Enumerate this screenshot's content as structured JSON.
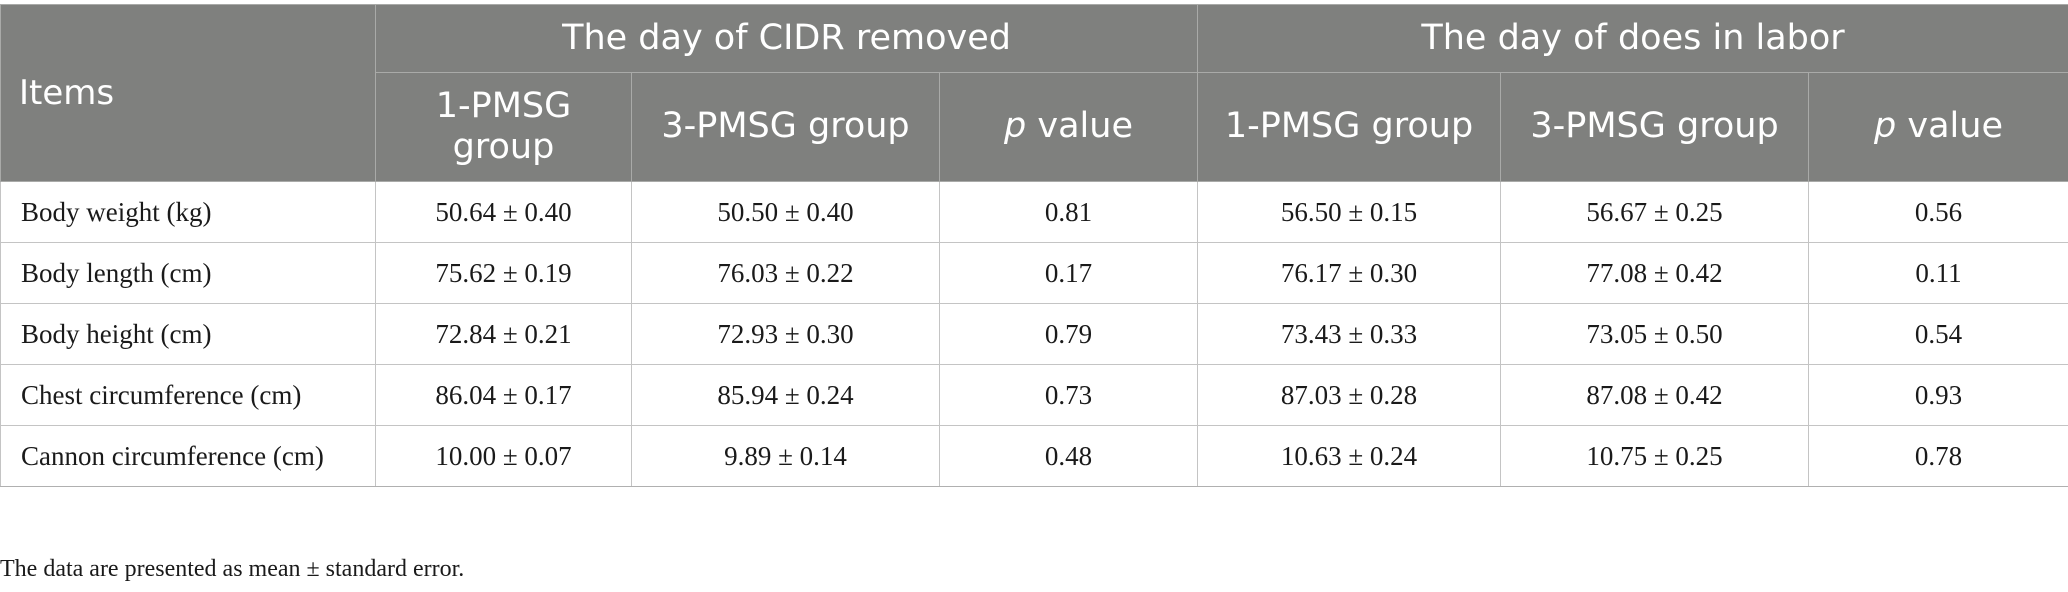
{
  "table": {
    "items_header": "Items",
    "groups": [
      {
        "label": "The day of CIDR removed"
      },
      {
        "label": "The day of does in labor"
      }
    ],
    "subheaders": [
      {
        "label": "1-PMSG group"
      },
      {
        "label": "3-PMSG group"
      },
      {
        "p": "p",
        "rest": " value"
      },
      {
        "label": "1-PMSG group"
      },
      {
        "label": "3-PMSG group"
      },
      {
        "p": "p",
        "rest": " value"
      }
    ],
    "rows": [
      {
        "item": "Body weight (kg)",
        "values": [
          "50.64 ± 0.40",
          "50.50 ± 0.40",
          "0.81",
          "56.50 ± 0.15",
          "56.67 ± 0.25",
          "0.56"
        ]
      },
      {
        "item": "Body length (cm)",
        "values": [
          "75.62 ± 0.19",
          "76.03 ± 0.22",
          "0.17",
          "76.17 ± 0.30",
          "77.08 ± 0.42",
          "0.11"
        ]
      },
      {
        "item": "Body height (cm)",
        "values": [
          "72.84 ± 0.21",
          "72.93 ± 0.30",
          "0.79",
          "73.43 ± 0.33",
          "73.05 ± 0.50",
          "0.54"
        ]
      },
      {
        "item": "Chest circumference (cm)",
        "values": [
          "86.04 ± 0.17",
          "85.94 ± 0.24",
          "0.73",
          "87.03 ± 0.28",
          "87.08 ± 0.42",
          "0.93"
        ]
      },
      {
        "item": "Cannon circumference (cm)",
        "values": [
          "10.00 ± 0.07",
          "9.89 ± 0.14",
          "0.48",
          "10.63 ± 0.24",
          "10.75 ± 0.25",
          "0.78"
        ]
      }
    ]
  },
  "footnote": "The data are presented as mean ± standard error.",
  "colors": {
    "header_bg": "#7f807e",
    "header_text": "#ffffff",
    "grid": "#c4c4c4"
  }
}
